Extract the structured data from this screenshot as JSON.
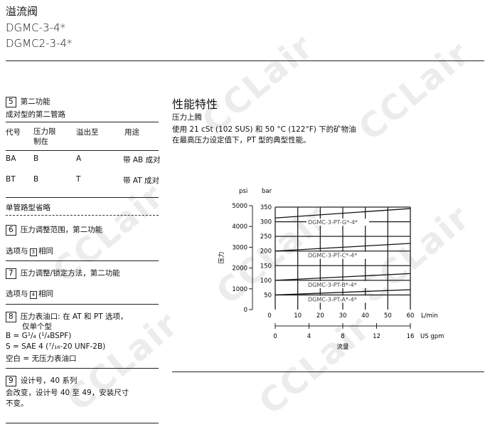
{
  "header": {
    "title_cn": "溢流阀",
    "model1": "DGMC-3-4*",
    "model2": "DGMC2-3-4*"
  },
  "watermark": "CCLair",
  "left": {
    "s5": {
      "num": "5",
      "title": "第二功能",
      "subtitle": "成对型的第二管路",
      "columns": [
        "代号",
        "压力限\n制在",
        "溢出至",
        "用途"
      ],
      "col_h2_line1": "压力限",
      "col_h2_line2": "制在",
      "rows": [
        [
          "BA",
          "B",
          "A",
          "带 AB 成对"
        ],
        [
          "BT",
          "B",
          "T",
          "带 AT 成对"
        ]
      ],
      "note": "单管路型省略"
    },
    "s6": {
      "num": "6",
      "title": "压力调整范围，第二功能",
      "opt_pre": "选项与",
      "opt_ref": "3",
      "opt_post": "相同"
    },
    "s7": {
      "num": "7",
      "title": "压力调整/锁定方法，第二功能",
      "opt_pre": "选项与",
      "opt_ref": "4",
      "opt_post": "相同"
    },
    "s8": {
      "num": "8",
      "title1": "压力表油口: 在 AT 和 PT 选项，",
      "title2": "仅单个型",
      "line_b": "B = G¹/₄ (¹/₄BSPF)",
      "line_s": "S = SAE 4 (⁷/₁₆-20 UNF-2B)",
      "line_blank": "空白 = 无压力表油口"
    },
    "s9": {
      "num": "9",
      "title": "设计号，40 系列",
      "text1": "会改变，设计号 40 至 49，安装尺寸",
      "text2": "不变。"
    }
  },
  "right": {
    "heading": "性能特性",
    "sub": "压力上腾",
    "line1": "使用 21 cSt (102 SUS) 和 50 °C (122°F) 下的矿物油",
    "line2": "在最高压力设定值下，PT 型的典型性能。"
  },
  "chart_data": {
    "type": "line",
    "ylabel": "压力",
    "xlabel": "流量",
    "y_unit_left": "psi",
    "y_unit_right": "bar",
    "x_unit_top": "L/min",
    "x_unit_bottom": "US gpm",
    "xlim": [
      0,
      60
    ],
    "ylim": [
      0,
      350
    ],
    "x_ticks": [
      0,
      10,
      20,
      30,
      40,
      50,
      60
    ],
    "x2_ticks": [
      0,
      4,
      8,
      12,
      16
    ],
    "y_ticks_bar": [
      50,
      100,
      150,
      200,
      250,
      300,
      350
    ],
    "y_ticks_psi": [
      0,
      1000,
      2000,
      3000,
      4000,
      5000
    ],
    "grid": true,
    "series": [
      {
        "name": "DGMC-3-PT-G*-4*",
        "code": "G",
        "x": [
          0,
          60
        ],
        "y": [
          313,
          345
        ]
      },
      {
        "name": "DGMC-3-PT-C*-4*",
        "code": "C",
        "x": [
          0,
          60
        ],
        "y": [
          200,
          226
        ]
      },
      {
        "name": "DGMC-3-PT-B*-4*",
        "code": "B",
        "x": [
          0,
          60
        ],
        "y": [
          100,
          123
        ]
      },
      {
        "name": "DGMC-3-PT-A*-4*",
        "code": "A",
        "x": [
          0,
          60
        ],
        "y": [
          50,
          68
        ]
      }
    ]
  }
}
